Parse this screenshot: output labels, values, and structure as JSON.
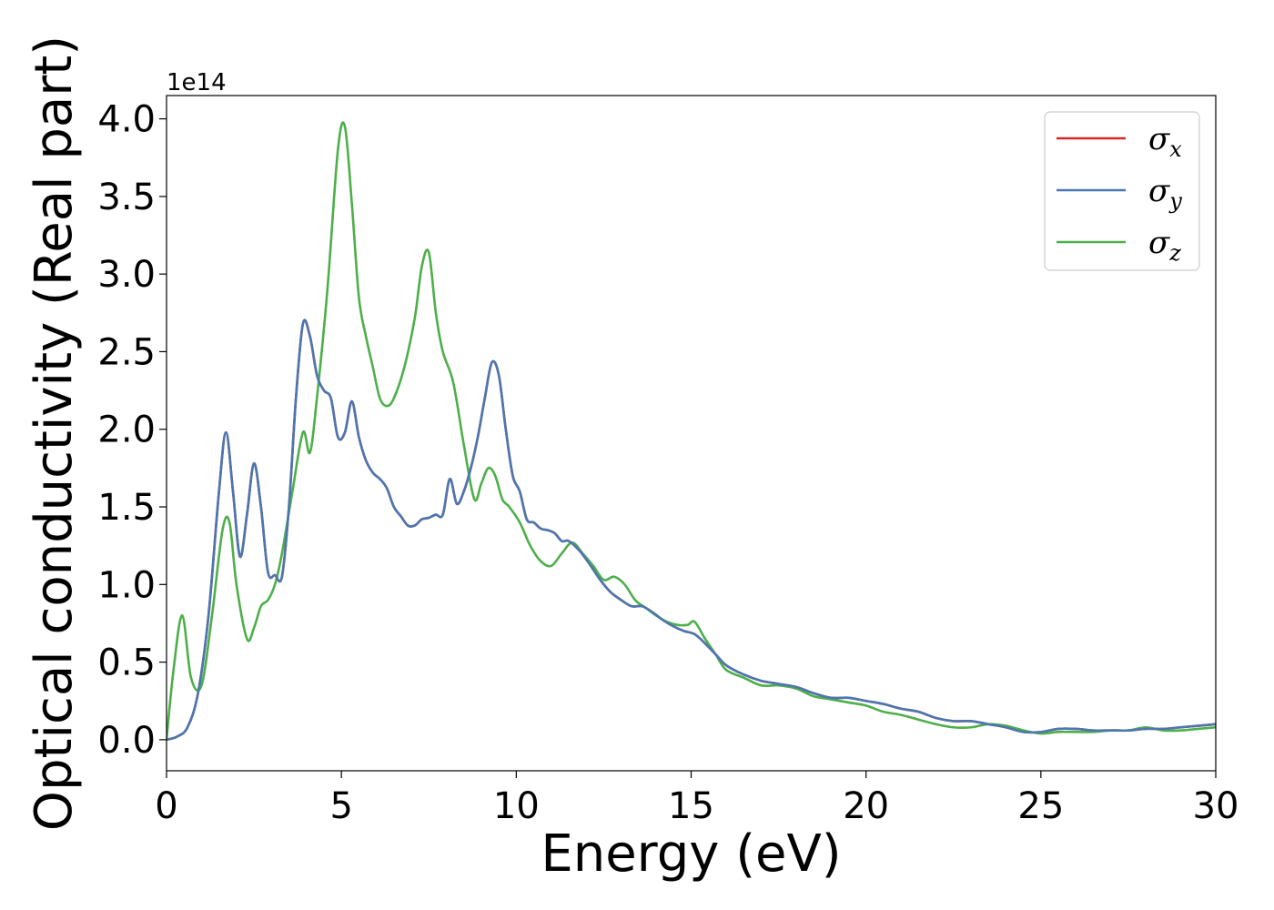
{
  "chart_data": {
    "type": "line",
    "xlabel": "Energy (eV)",
    "ylabel": "Optical conductivity (Real part)",
    "y_offset_label": "1e14",
    "xlim": [
      0,
      30
    ],
    "ylim": [
      -0.2,
      4.15
    ],
    "x_ticks": [
      0,
      5,
      10,
      15,
      20,
      25,
      30
    ],
    "x_tick_labels": [
      "0",
      "5",
      "10",
      "15",
      "20",
      "25",
      "30"
    ],
    "y_ticks": [
      0,
      0.5,
      1.0,
      1.5,
      2.0,
      2.5,
      3.0,
      3.5,
      4.0
    ],
    "y_tick_labels": [
      "0.0",
      "0.5",
      "1.0",
      "1.5",
      "2.0",
      "2.5",
      "3.0",
      "3.5",
      "4.0"
    ],
    "grid": false,
    "legend_position": "top-right",
    "series": [
      {
        "name": "σx",
        "symbol": "σ",
        "subscript": "x",
        "color": "#d62728",
        "x": [
          0,
          0.3,
          0.6,
          0.9,
          1.2,
          1.5,
          1.7,
          1.9,
          2.1,
          2.3,
          2.5,
          2.7,
          2.9,
          3.1,
          3.3,
          3.5,
          3.7,
          3.9,
          4.1,
          4.3,
          4.5,
          4.7,
          4.9,
          5.1,
          5.3,
          5.5,
          5.7,
          5.9,
          6.1,
          6.3,
          6.5,
          6.7,
          6.9,
          7.1,
          7.3,
          7.5,
          7.7,
          7.9,
          8.1,
          8.3,
          8.5,
          8.7,
          8.9,
          9.1,
          9.3,
          9.5,
          9.7,
          9.9,
          10.1,
          10.3,
          10.5,
          10.7,
          10.9,
          11.1,
          11.3,
          11.5,
          11.8,
          12.1,
          12.4,
          12.7,
          13.0,
          13.3,
          13.6,
          13.9,
          14.2,
          14.5,
          14.8,
          15.1,
          15.4,
          15.7,
          16.0,
          16.5,
          17.0,
          17.5,
          18.0,
          18.5,
          19.0,
          19.5,
          20.0,
          20.5,
          21.0,
          21.5,
          22.0,
          22.5,
          23.0,
          23.5,
          24.0,
          24.5,
          25.0,
          25.5,
          26.0,
          26.5,
          27.0,
          27.5,
          28.0,
          28.5,
          29.0,
          29.5,
          30.0
        ],
        "y": [
          0.0,
          0.02,
          0.08,
          0.3,
          0.8,
          1.6,
          1.98,
          1.6,
          1.18,
          1.45,
          1.78,
          1.5,
          1.08,
          1.06,
          1.05,
          1.5,
          2.2,
          2.68,
          2.6,
          2.35,
          2.25,
          2.2,
          1.95,
          1.98,
          2.18,
          1.95,
          1.8,
          1.72,
          1.68,
          1.62,
          1.5,
          1.44,
          1.38,
          1.38,
          1.42,
          1.43,
          1.45,
          1.45,
          1.68,
          1.52,
          1.6,
          1.75,
          1.95,
          2.2,
          2.43,
          2.35,
          2.0,
          1.7,
          1.6,
          1.42,
          1.4,
          1.36,
          1.35,
          1.33,
          1.28,
          1.28,
          1.22,
          1.13,
          1.03,
          0.95,
          0.9,
          0.86,
          0.86,
          0.82,
          0.77,
          0.73,
          0.7,
          0.68,
          0.62,
          0.55,
          0.48,
          0.42,
          0.38,
          0.36,
          0.34,
          0.3,
          0.27,
          0.27,
          0.25,
          0.23,
          0.2,
          0.18,
          0.14,
          0.12,
          0.12,
          0.1,
          0.08,
          0.05,
          0.05,
          0.07,
          0.07,
          0.06,
          0.06,
          0.06,
          0.07,
          0.07,
          0.08,
          0.09,
          0.1
        ]
      },
      {
        "name": "σy",
        "symbol": "σ",
        "subscript": "y",
        "color": "#4a77b0",
        "x": [
          0,
          0.3,
          0.6,
          0.9,
          1.2,
          1.5,
          1.7,
          1.9,
          2.1,
          2.3,
          2.5,
          2.7,
          2.9,
          3.1,
          3.3,
          3.5,
          3.7,
          3.9,
          4.1,
          4.3,
          4.5,
          4.7,
          4.9,
          5.1,
          5.3,
          5.5,
          5.7,
          5.9,
          6.1,
          6.3,
          6.5,
          6.7,
          6.9,
          7.1,
          7.3,
          7.5,
          7.7,
          7.9,
          8.1,
          8.3,
          8.5,
          8.7,
          8.9,
          9.1,
          9.3,
          9.5,
          9.7,
          9.9,
          10.1,
          10.3,
          10.5,
          10.7,
          10.9,
          11.1,
          11.3,
          11.5,
          11.8,
          12.1,
          12.4,
          12.7,
          13.0,
          13.3,
          13.6,
          13.9,
          14.2,
          14.5,
          14.8,
          15.1,
          15.4,
          15.7,
          16.0,
          16.5,
          17.0,
          17.5,
          18.0,
          18.5,
          19.0,
          19.5,
          20.0,
          20.5,
          21.0,
          21.5,
          22.0,
          22.5,
          23.0,
          23.5,
          24.0,
          24.5,
          25.0,
          25.5,
          26.0,
          26.5,
          27.0,
          27.5,
          28.0,
          28.5,
          29.0,
          29.5,
          30.0
        ],
        "y": [
          0.0,
          0.02,
          0.08,
          0.3,
          0.8,
          1.6,
          1.98,
          1.6,
          1.18,
          1.45,
          1.78,
          1.5,
          1.08,
          1.06,
          1.05,
          1.5,
          2.2,
          2.68,
          2.6,
          2.35,
          2.25,
          2.2,
          1.95,
          1.98,
          2.18,
          1.95,
          1.8,
          1.72,
          1.68,
          1.62,
          1.5,
          1.44,
          1.38,
          1.38,
          1.42,
          1.43,
          1.45,
          1.45,
          1.68,
          1.52,
          1.6,
          1.75,
          1.95,
          2.2,
          2.43,
          2.35,
          2.0,
          1.7,
          1.6,
          1.42,
          1.4,
          1.36,
          1.35,
          1.33,
          1.28,
          1.28,
          1.22,
          1.13,
          1.03,
          0.95,
          0.9,
          0.86,
          0.86,
          0.82,
          0.77,
          0.73,
          0.7,
          0.68,
          0.62,
          0.55,
          0.48,
          0.42,
          0.38,
          0.36,
          0.34,
          0.3,
          0.27,
          0.27,
          0.25,
          0.23,
          0.2,
          0.18,
          0.14,
          0.12,
          0.12,
          0.1,
          0.08,
          0.05,
          0.05,
          0.07,
          0.07,
          0.06,
          0.06,
          0.06,
          0.07,
          0.07,
          0.08,
          0.09,
          0.1
        ]
      },
      {
        "name": "σz",
        "symbol": "σ",
        "subscript": "z",
        "color": "#4daf4a",
        "x": [
          0,
          0.2,
          0.45,
          0.7,
          1.0,
          1.3,
          1.6,
          1.8,
          2.0,
          2.3,
          2.5,
          2.7,
          2.9,
          3.1,
          3.3,
          3.6,
          3.9,
          4.1,
          4.3,
          4.6,
          4.9,
          5.1,
          5.3,
          5.5,
          5.7,
          5.9,
          6.1,
          6.3,
          6.5,
          6.8,
          7.1,
          7.3,
          7.5,
          7.7,
          7.9,
          8.2,
          8.5,
          8.8,
          9.0,
          9.2,
          9.4,
          9.6,
          9.8,
          10.1,
          10.4,
          10.7,
          11.0,
          11.3,
          11.6,
          11.9,
          12.2,
          12.5,
          12.8,
          13.1,
          13.4,
          13.7,
          14.0,
          14.3,
          14.6,
          14.9,
          15.1,
          15.4,
          15.7,
          16.0,
          16.5,
          17.0,
          17.5,
          18.0,
          18.5,
          19.0,
          19.5,
          20.0,
          20.5,
          21.0,
          21.5,
          22.0,
          22.5,
          23.0,
          23.5,
          24.0,
          24.5,
          25.0,
          25.5,
          26.0,
          26.5,
          27.0,
          27.5,
          28.0,
          28.5,
          29.0,
          29.5,
          30.0
        ],
        "y": [
          0.0,
          0.45,
          0.8,
          0.4,
          0.35,
          0.8,
          1.35,
          1.4,
          1.0,
          0.65,
          0.72,
          0.86,
          0.9,
          1.0,
          1.2,
          1.6,
          1.98,
          1.85,
          2.2,
          2.9,
          3.8,
          3.95,
          3.45,
          2.85,
          2.6,
          2.4,
          2.2,
          2.15,
          2.2,
          2.4,
          2.72,
          3.05,
          3.14,
          2.75,
          2.5,
          2.3,
          1.9,
          1.55,
          1.65,
          1.75,
          1.7,
          1.55,
          1.5,
          1.4,
          1.25,
          1.15,
          1.12,
          1.2,
          1.27,
          1.2,
          1.12,
          1.03,
          1.05,
          1.0,
          0.9,
          0.85,
          0.8,
          0.76,
          0.74,
          0.74,
          0.76,
          0.65,
          0.55,
          0.45,
          0.4,
          0.35,
          0.35,
          0.33,
          0.28,
          0.26,
          0.24,
          0.22,
          0.18,
          0.16,
          0.13,
          0.1,
          0.08,
          0.08,
          0.1,
          0.09,
          0.06,
          0.04,
          0.05,
          0.05,
          0.05,
          0.06,
          0.06,
          0.08,
          0.06,
          0.06,
          0.07,
          0.08
        ]
      }
    ]
  }
}
